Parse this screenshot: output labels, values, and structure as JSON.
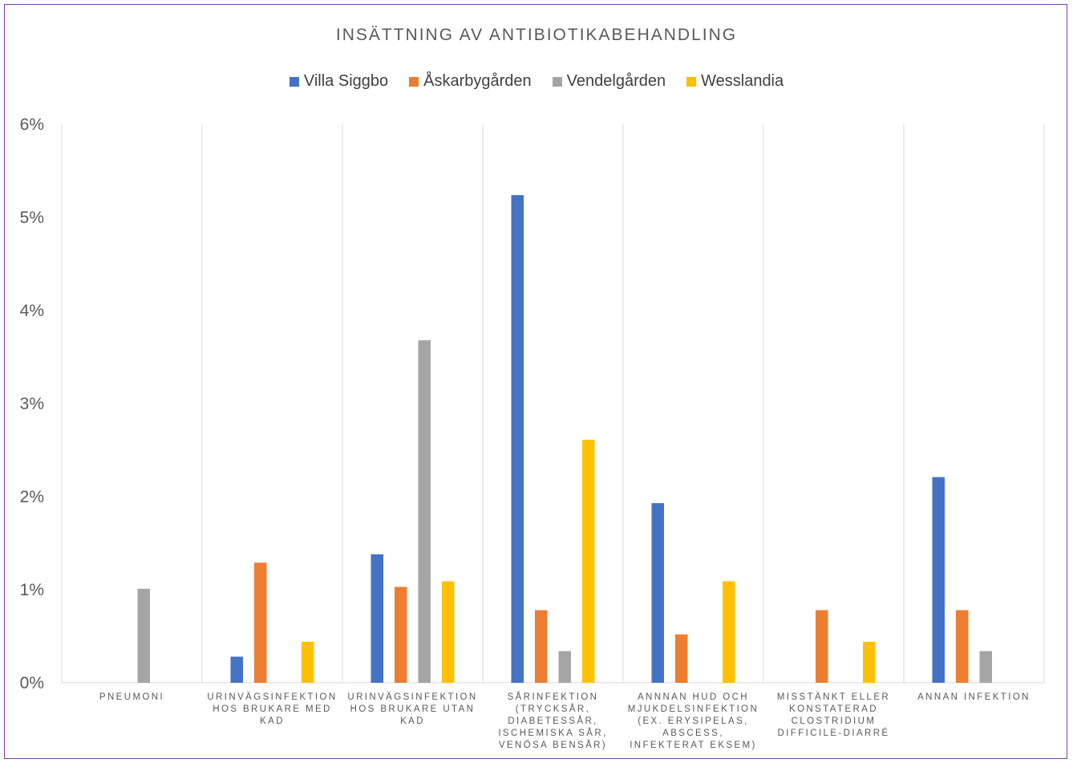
{
  "chart_data": {
    "type": "bar",
    "title": "INSÄTTNING AV ANTIBIOTIKABEHANDLING",
    "xlabel": "",
    "ylabel": "",
    "ylim": [
      0,
      0.06
    ],
    "yticks": [
      "0%",
      "1%",
      "2%",
      "3%",
      "4%",
      "5%",
      "6%"
    ],
    "legend_position": "top",
    "grid": "vertical category separators",
    "categories": [
      [
        "PNEUMONI"
      ],
      [
        "URINVÄGSINFEKTION",
        "HOS BRUKARE MED",
        "KAD"
      ],
      [
        "URINVÄGSINFEKTION",
        "HOS BRUKARE UTAN",
        "KAD"
      ],
      [
        "SÅRINFEKTION",
        "(TRYCKSÅR,",
        "DIABETESSÅR,",
        "ISCHEMISKA SÅR,",
        "VENÖSA BENSÅR)"
      ],
      [
        "ANNNAN HUD OCH",
        "MJUKDELSINFEKTION",
        "(EX. ERYSIPELAS,",
        "ABSCESS,",
        "INFEKTERAT EKSEM)"
      ],
      [
        "MISSTÄNKT ELLER",
        "KONSTATERAD",
        "CLOSTRIDIUM",
        "DIFFICILE-DIARRÉ"
      ],
      [
        "ANNAN INFEKTION"
      ]
    ],
    "series": [
      {
        "name": "Villa Siggbo",
        "color": "#4472c4",
        "values": [
          0,
          0.0028,
          0.0138,
          0.0524,
          0.0193,
          0,
          0.0221
        ]
      },
      {
        "name": "Åskarbygården",
        "color": "#ed7d31",
        "values": [
          0,
          0.0129,
          0.0103,
          0.0078,
          0.0052,
          0.0078,
          0.0078
        ]
      },
      {
        "name": "Vendelgården",
        "color": "#a5a5a5",
        "values": [
          0.0101,
          0,
          0.0368,
          0.0034,
          0,
          0,
          0.0034
        ]
      },
      {
        "name": "Wesslandia",
        "color": "#ffc000",
        "values": [
          0,
          0.0044,
          0.0109,
          0.0261,
          0.0109,
          0.0044,
          0
        ]
      }
    ]
  }
}
